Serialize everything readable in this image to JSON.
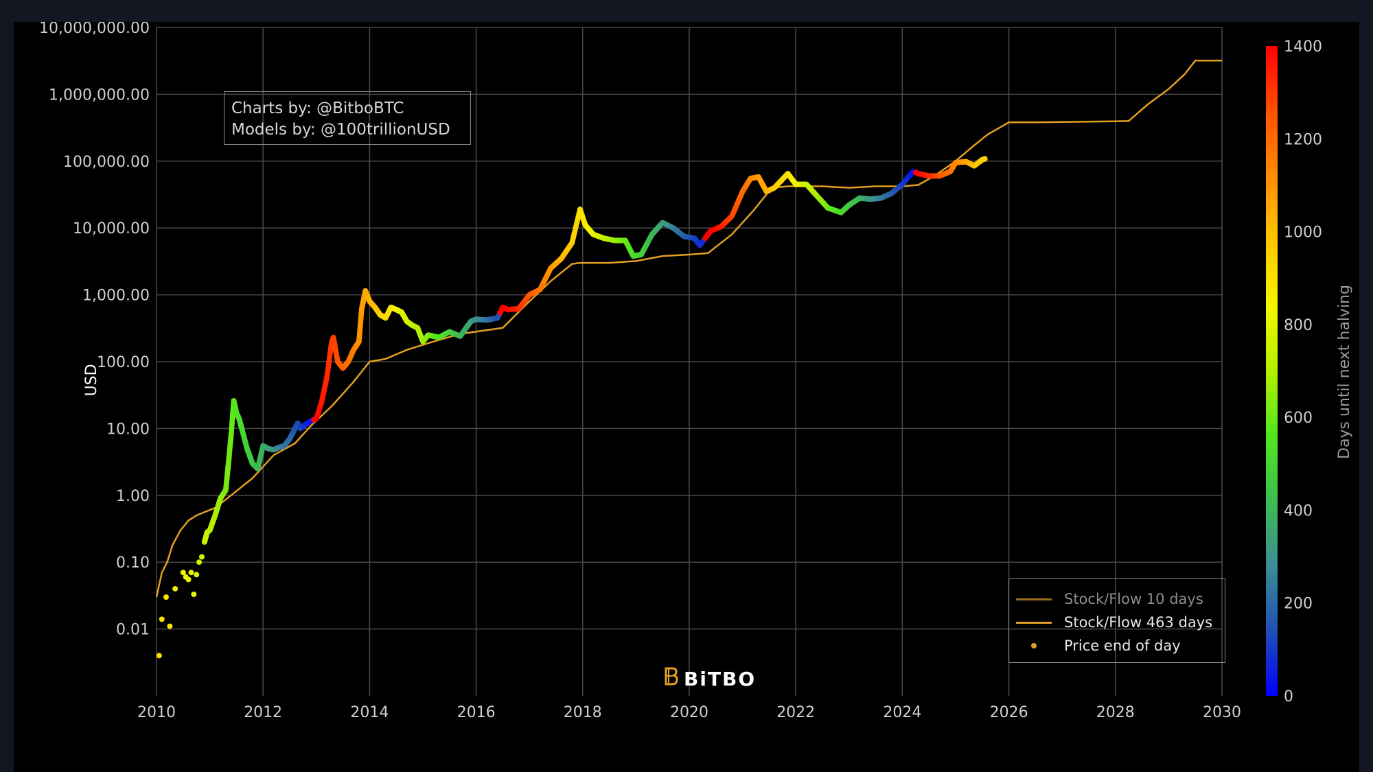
{
  "colors": {
    "page_bg": "#131722",
    "plot_bg": "#000000",
    "grid": "#4a4a4a",
    "text": "#d0d0d0",
    "sf_line": "#e39f21",
    "sf_line_faded": "#9a6f1f",
    "legend_faded_text": "#8d8d8d",
    "legend_text": "#e8e8e8"
  },
  "credits": {
    "line1": "Charts by: @BitboBTC",
    "line2": "Models by: @100trillionUSD"
  },
  "watermark": {
    "text": "BiTBO",
    "icon": "bitbo-logo-icon"
  },
  "chart_data": {
    "type": "scatter",
    "y_scale": "log",
    "ylabel": "USD",
    "xlim": [
      2010,
      2030
    ],
    "ylim": [
      0.001,
      10000000
    ],
    "x_ticks": [
      "2010",
      "2012",
      "2014",
      "2016",
      "2018",
      "2020",
      "2022",
      "2024",
      "2026",
      "2028",
      "2030"
    ],
    "y_ticks": [
      {
        "value": 10000000,
        "label": "10,000,000.00"
      },
      {
        "value": 1000000,
        "label": "1,000,000.00"
      },
      {
        "value": 100000,
        "label": "100,000.00"
      },
      {
        "value": 10000,
        "label": "10,000.00"
      },
      {
        "value": 1000,
        "label": "1,000.00"
      },
      {
        "value": 100,
        "label": "100.00"
      },
      {
        "value": 10,
        "label": "10.00"
      },
      {
        "value": 1,
        "label": "1.00"
      },
      {
        "value": 0.1,
        "label": "0.10"
      },
      {
        "value": 0.01,
        "label": "0.01"
      }
    ],
    "grid": true,
    "legend_position": "bottom-right",
    "legend": [
      {
        "label": "Stock/Flow 10 days",
        "kind": "line",
        "faded": true
      },
      {
        "label": "Stock/Flow 463 days",
        "kind": "line",
        "faded": false
      },
      {
        "label": "Price end of day",
        "kind": "dot",
        "faded": false
      }
    ],
    "colorbar": {
      "title": "Days until next halving",
      "min": 0,
      "max": 1400,
      "ticks": [
        "1400",
        "1200",
        "1000",
        "800",
        "600",
        "400",
        "200",
        "0"
      ],
      "colorscale": [
        "#0000ff",
        "#1e50b4",
        "#3c8c96",
        "#3cbe50",
        "#50e61e",
        "#b4f000",
        "#f5f500",
        "#ffc800",
        "#ff8c00",
        "#ff5000",
        "#ff0000"
      ]
    },
    "series": [
      {
        "name": "Stock/Flow 463 days",
        "kind": "line",
        "x": [
          2010.0,
          2010.1,
          2010.2,
          2010.3,
          2010.45,
          2010.6,
          2010.75,
          2010.9,
          2011.1,
          2011.4,
          2011.8,
          2012.2,
          2012.6,
          2012.9,
          2013.3,
          2013.7,
          2014.0,
          2014.3,
          2014.7,
          2015.2,
          2015.7,
          2016.5,
          2017.0,
          2017.4,
          2017.8,
          2017.95,
          2018.5,
          2019.0,
          2019.5,
          2020.0,
          2020.35,
          2020.8,
          2021.2,
          2021.55,
          2021.85,
          2022.0,
          2022.5,
          2023.0,
          2023.5,
          2024.0,
          2024.3,
          2024.6,
          2025.0,
          2025.3,
          2025.6,
          2026.0,
          2026.5,
          2027.0,
          2027.5,
          2028.0,
          2028.25,
          2028.6,
          2029.0,
          2029.3,
          2029.5,
          2030.0
        ],
        "y": [
          0.03,
          0.07,
          0.1,
          0.18,
          0.3,
          0.42,
          0.5,
          0.56,
          0.65,
          1.0,
          1.8,
          4.0,
          6.0,
          11,
          22,
          50,
          100,
          110,
          150,
          200,
          260,
          320,
          800,
          1600,
          2900,
          3000,
          3000,
          3200,
          3800,
          4000,
          4200,
          8000,
          18000,
          40000,
          42000,
          42000,
          42000,
          40000,
          42000,
          42000,
          44000,
          60000,
          100000,
          160000,
          250000,
          380000,
          380000,
          385000,
          390000,
          395000,
          400000,
          700000,
          1200000,
          2000000,
          3200000,
          3200000
        ]
      },
      {
        "name": "Price end of day",
        "kind": "scatter",
        "x": [
          2010.05,
          2010.1,
          2010.18,
          2010.25,
          2010.35,
          2010.5,
          2010.55,
          2010.6,
          2010.65,
          2010.7,
          2010.75,
          2010.8,
          2010.85,
          2010.9,
          2010.95,
          2011.0,
          2011.1,
          2011.2,
          2011.3,
          2011.35,
          2011.4,
          2011.45,
          2011.5,
          2011.55,
          2011.6,
          2011.7,
          2011.8,
          2011.9,
          2012.0,
          2012.1,
          2012.2,
          2012.3,
          2012.4,
          2012.5,
          2012.6,
          2012.65,
          2012.7,
          2012.8,
          2012.9,
          2013.0,
          2013.1,
          2013.2,
          2013.28,
          2013.32,
          2013.4,
          2013.5,
          2013.6,
          2013.7,
          2013.8,
          2013.85,
          2013.92,
          2014.0,
          2014.1,
          2014.2,
          2014.3,
          2014.4,
          2014.5,
          2014.6,
          2014.7,
          2014.8,
          2014.9,
          2015.0,
          2015.1,
          2015.3,
          2015.5,
          2015.7,
          2015.9,
          2016.0,
          2016.2,
          2016.4,
          2016.5,
          2016.6,
          2016.8,
          2017.0,
          2017.2,
          2017.4,
          2017.6,
          2017.8,
          2017.95,
          2018.05,
          2018.2,
          2018.4,
          2018.6,
          2018.8,
          2018.95,
          2019.1,
          2019.3,
          2019.5,
          2019.7,
          2019.9,
          2020.1,
          2020.2,
          2020.4,
          2020.6,
          2020.8,
          2021.0,
          2021.15,
          2021.3,
          2021.45,
          2021.6,
          2021.85,
          2022.0,
          2022.2,
          2022.4,
          2022.6,
          2022.85,
          2023.0,
          2023.2,
          2023.4,
          2023.6,
          2023.8,
          2024.0,
          2024.2,
          2024.3,
          2024.5,
          2024.7,
          2024.9,
          2025.0,
          2025.2,
          2025.35,
          2025.5,
          2025.55
        ],
        "y": [
          0.004,
          0.014,
          0.03,
          0.011,
          0.04,
          0.07,
          0.06,
          0.055,
          0.07,
          0.033,
          0.065,
          0.1,
          0.12,
          0.2,
          0.28,
          0.3,
          0.5,
          0.9,
          1.2,
          3.0,
          8.0,
          26,
          17,
          14,
          10,
          5,
          3,
          2.5,
          5.5,
          5.0,
          4.8,
          5.2,
          5.5,
          7.0,
          10,
          12,
          10,
          11.5,
          13,
          14,
          25,
          60,
          180,
          230,
          100,
          80,
          100,
          150,
          200,
          600,
          1150,
          800,
          650,
          500,
          450,
          650,
          600,
          550,
          400,
          350,
          320,
          200,
          250,
          230,
          280,
          240,
          400,
          430,
          420,
          450,
          650,
          600,
          620,
          1000,
          1200,
          2500,
          3500,
          6000,
          19000,
          11000,
          8000,
          7000,
          6500,
          6500,
          3800,
          4000,
          8000,
          12000,
          10000,
          7500,
          7000,
          5500,
          9000,
          10500,
          15000,
          35000,
          55000,
          58000,
          35000,
          40000,
          65000,
          45000,
          45000,
          30000,
          20000,
          17000,
          22000,
          28000,
          27000,
          28000,
          33000,
          45000,
          70000,
          65000,
          60000,
          60000,
          70000,
          95000,
          98000,
          85000,
          105000,
          108000
        ],
        "days_until_halving": [
          930,
          910,
          890,
          880,
          860,
          840,
          830,
          820,
          810,
          800,
          790,
          780,
          770,
          760,
          740,
          720,
          700,
          660,
          620,
          610,
          600,
          580,
          560,
          540,
          520,
          480,
          450,
          410,
          380,
          350,
          310,
          270,
          230,
          200,
          160,
          140,
          120,
          80,
          40,
          1400,
          1360,
          1330,
          1300,
          1290,
          1260,
          1220,
          1190,
          1150,
          1110,
          1090,
          1060,
          1030,
          1000,
          960,
          930,
          890,
          850,
          820,
          780,
          740,
          710,
          670,
          630,
          560,
          490,
          410,
          340,
          300,
          230,
          150,
          1420,
          1390,
          1330,
          1250,
          1180,
          1100,
          1030,
          960,
          910,
          870,
          820,
          740,
          670,
          600,
          540,
          490,
          410,
          340,
          260,
          190,
          120,
          80,
          1420,
          1350,
          1280,
          1200,
          1150,
          1090,
          1040,
          980,
          890,
          840,
          760,
          690,
          610,
          520,
          470,
          400,
          320,
          250,
          180,
          110,
          30,
          1400,
          1330,
          1260,
          1180,
          1140,
          1060,
          1000,
          950,
          940
        ]
      }
    ]
  }
}
